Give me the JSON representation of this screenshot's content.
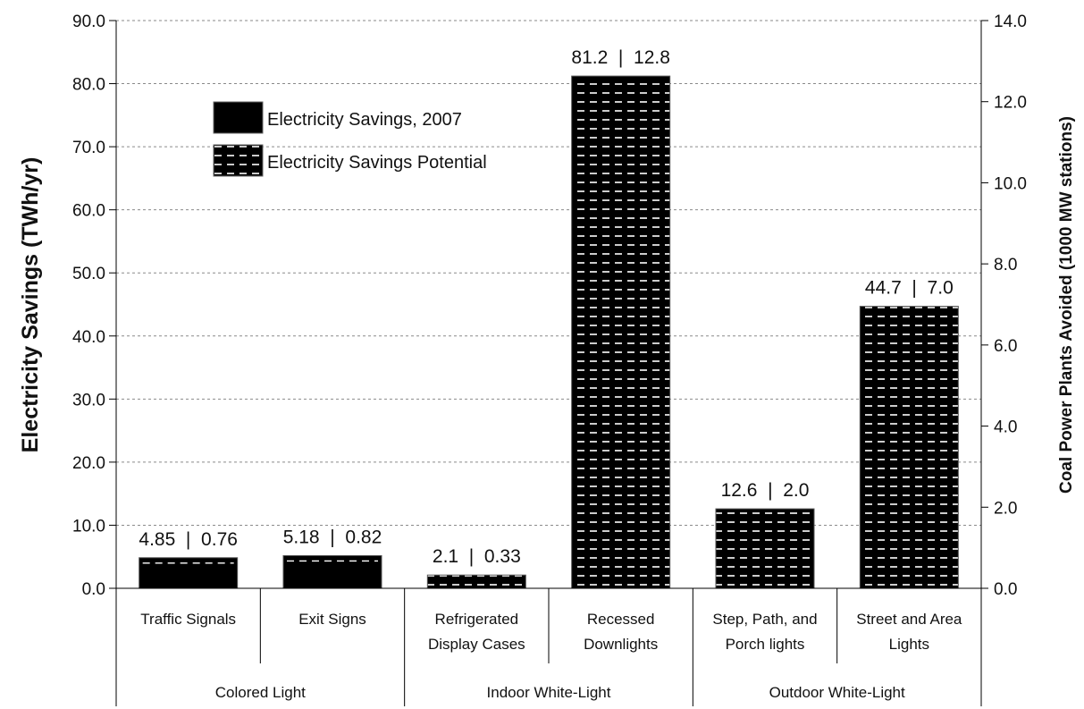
{
  "chart_data": {
    "type": "bar",
    "ylabel": "Electricity Savings (TWh/yr)",
    "y2label": "Coal Power Plants Avoided (1000 MW stations)",
    "ylim": [
      0,
      90
    ],
    "y2lim": [
      0,
      14
    ],
    "yticks": [
      "0.0",
      "10.0",
      "20.0",
      "30.0",
      "40.0",
      "50.0",
      "60.0",
      "70.0",
      "80.0",
      "90.0"
    ],
    "y2ticks": [
      "0.0",
      "2.0",
      "4.0",
      "6.0",
      "8.0",
      "10.0",
      "12.0",
      "14.0"
    ],
    "grid": true,
    "legend_position": "top-left",
    "legend": [
      "Electricity Savings, 2007",
      "Electricity Savings Potential"
    ],
    "categories": [
      {
        "label": [
          "Traffic Signals"
        ],
        "value": 4.85,
        "series": "Electricity Savings, 2007",
        "data_label": "4.85  |  0.76"
      },
      {
        "label": [
          "Exit Signs"
        ],
        "value": 5.18,
        "series": "Electricity Savings, 2007",
        "data_label": "5.18  |  0.82"
      },
      {
        "label": [
          "Refrigerated",
          "Display Cases"
        ],
        "value": 2.1,
        "series": "Electricity Savings Potential",
        "data_label": "2.1  |  0.33"
      },
      {
        "label": [
          "Recessed",
          "Downlights"
        ],
        "value": 81.2,
        "series": "Electricity Savings Potential",
        "data_label": "81.2  |  12.8"
      },
      {
        "label": [
          "Step, Path, and",
          "Porch lights"
        ],
        "value": 12.6,
        "series": "Electricity Savings Potential",
        "data_label": "12.6  |  2.0"
      },
      {
        "label": [
          "Street and Area",
          "Lights"
        ],
        "value": 44.7,
        "series": "Electricity Savings Potential",
        "data_label": "44.7  |  7.0"
      }
    ],
    "groups": [
      {
        "label": "Colored Light",
        "span": [
          0,
          1
        ]
      },
      {
        "label": "Indoor White-Light",
        "span": [
          2,
          3
        ]
      },
      {
        "label": "Outdoor White-Light",
        "span": [
          4,
          5
        ]
      }
    ]
  },
  "colors": {
    "bar_fill": "#000000",
    "pattern_dash": "#ffffff",
    "grid": "#8a8a8a",
    "axis": "#000000"
  }
}
